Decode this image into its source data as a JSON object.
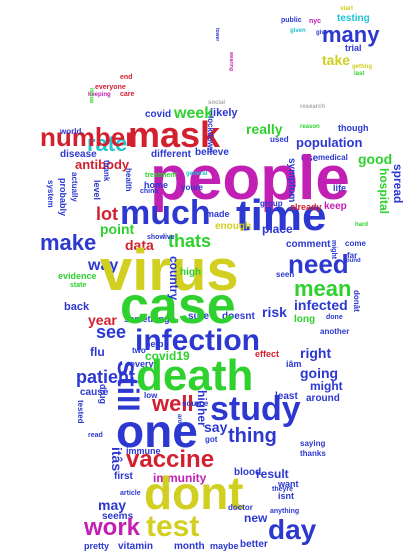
{
  "colors": {
    "magenta": "#c21fb5",
    "red": "#d3202f",
    "green": "#2ed12e",
    "blue": "#2c38d0",
    "yellow": "#d1cf1f",
    "cyan": "#21c4d0",
    "lime": "#8ad12a",
    "grey": "#aaaaaa"
  },
  "words": {
    "people": "people",
    "virus": "virus",
    "case": "case",
    "dont": "dont",
    "death": "death",
    "one": "one",
    "mask": "mask",
    "time": "time",
    "study": "study",
    "much": "much",
    "still": "still",
    "vaccine": "vaccine",
    "test": "test",
    "work": "work",
    "day": "day",
    "infection": "infection",
    "need": "need",
    "number": "number",
    "many": "many",
    "rate": "rate",
    "make": "make",
    "thats": "thats",
    "well": "well",
    "see": "see",
    "mean": "mean",
    "thing": "thing",
    "population": "population",
    "immunity": "immunity",
    "going": "going",
    "really": "really",
    "antibody": "antibody",
    "lot": "lot",
    "data": "data",
    "point": "point",
    "way": "way",
    "year": "year",
    "infected": "infected",
    "risk": "risk",
    "right": "right",
    "covid19": "covid19",
    "patient": "patient",
    "take": "take",
    "week": "week",
    "good": "good",
    "hospital": "hospital",
    "say": "say",
    "may": "may",
    "seems": "seems",
    "month": "month",
    "vitamin": "vitamin",
    "better": "better",
    "new": "new",
    "result": "result",
    "might": "might",
    "might2": "might",
    "least": "least",
    "effect": "effect",
    "got": "got",
    "comment": "comment",
    "high": "high",
    "sure": "sure",
    "doesnt": "doesnt",
    "country": "country",
    "enough": "enough",
    "place": "place",
    "symptom": "symptom",
    "spread": "spread",
    "already": "already",
    "keep": "keep",
    "covid": "covid",
    "likely": "likely",
    "different": "different",
    "believe": "believe",
    "made": "made",
    "lockdown": "lockdown",
    "level": "level",
    "disease": "disease",
    "itas": "itâs",
    "donat": "donât",
    "iam": "iâm",
    "testing": "testing",
    "trial": "trial",
    "last": "last",
    "getting": "getting",
    "public": "public",
    "nyc": "nyc",
    "given": "given",
    "give": "give",
    "start": "start",
    "though": "though",
    "life": "life",
    "home": "home",
    "something": "something",
    "flu": "flu",
    "help": "help",
    "every": "every",
    "low": "low",
    "higher": "higher",
    "around": "around",
    "cause": "cause",
    "immune": "immune",
    "blood": "blood",
    "want": "want",
    "isnt": "isnt",
    "around2": "around",
    "first": "first",
    "pretty": "pretty",
    "maybe": "maybe",
    "treatment": "treatment",
    "far": "far",
    "come": "come",
    "seen": "seen",
    "long": "long",
    "done": "done",
    "another": "another",
    "back": "back",
    "evidence": "evidence",
    "state": "state",
    "probably": "probably",
    "actually": "actually",
    "system": "system",
    "world": "world",
    "end": "end",
    "care": "care",
    "everyone": "everyone",
    "youre": "youre",
    "thank": "thank",
    "health": "health",
    "china": "china",
    "show": "show",
    "live": "live",
    "group": "group",
    "found": "found",
    "used": "used",
    "medical": "medical",
    "saying": "saying",
    "thanks": "thanks",
    "source": "source",
    "article": "article",
    "doctor": "doctor",
    "theyre": "theyre",
    "anything": "anything",
    "read": "read",
    "tested": "tested",
    "drug": "drug",
    "two": "two",
    "issue": "issue",
    "keeping": "keeping",
    "general": "general",
    "use": "use",
    "hard": "hard",
    "wearing": "wearing",
    "research": "research",
    "reason": "reason",
    "social": "social",
    "tower": "tower"
  }
}
